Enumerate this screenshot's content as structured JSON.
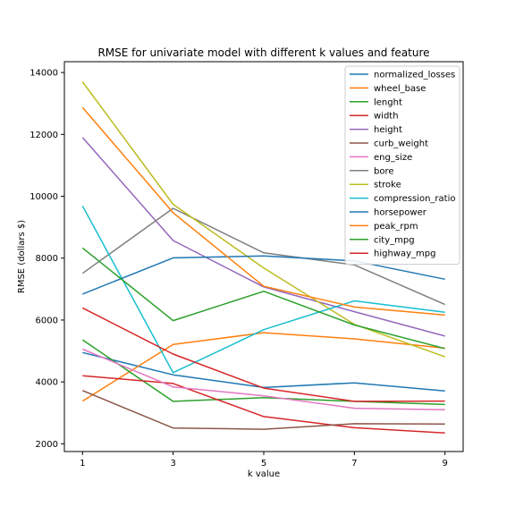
{
  "chart_data": {
    "type": "line",
    "title": "RMSE for univariate model with different k values and feature",
    "xlabel": "k value",
    "ylabel": "RMSE (dollars $)",
    "x": [
      1,
      3,
      5,
      7,
      9
    ],
    "xticks": [
      "1",
      "3",
      "5",
      "7",
      "9"
    ],
    "xlim": [
      0.6,
      9.4
    ],
    "yticks": [
      2000,
      4000,
      6000,
      8000,
      10000,
      12000,
      14000
    ],
    "ylim": [
      1750,
      14350
    ],
    "grid": false,
    "legend_position": "top-right",
    "series": [
      {
        "name": "normalized_losses",
        "color": "#1f77b4",
        "values": [
          4950,
          4230,
          3820,
          3970,
          3710
        ]
      },
      {
        "name": "wheel_base",
        "color": "#ff7f0e",
        "values": [
          3380,
          5210,
          5590,
          5390,
          5090
        ]
      },
      {
        "name": "lenght",
        "color": "#2ca02c",
        "values": [
          5360,
          3370,
          3490,
          3370,
          3270
        ]
      },
      {
        "name": "width",
        "color": "#d62728",
        "values": [
          4200,
          3950,
          2880,
          2520,
          2350
        ]
      },
      {
        "name": "height",
        "color": "#9467bd",
        "values": [
          11900,
          8570,
          7070,
          6270,
          5480
        ]
      },
      {
        "name": "curb_weight",
        "color": "#8c564b",
        "values": [
          3720,
          2510,
          2470,
          2650,
          2640
        ]
      },
      {
        "name": "eng_size",
        "color": "#e377c2",
        "values": [
          5060,
          3840,
          3550,
          3150,
          3100
        ]
      },
      {
        "name": "bore",
        "color": "#7f7f7f",
        "values": [
          7510,
          9610,
          8170,
          7780,
          6500
        ]
      },
      {
        "name": "stroke",
        "color": "#bcbd22",
        "values": [
          13700,
          9740,
          7680,
          5860,
          4810
        ]
      },
      {
        "name": "compression_ratio",
        "color": "#17becf",
        "values": [
          9690,
          4300,
          5690,
          6620,
          6250
        ]
      },
      {
        "name": "horsepower",
        "color": "#1f77b4",
        "values": [
          6840,
          8010,
          8070,
          7910,
          7320
        ]
      },
      {
        "name": "peak_rpm",
        "color": "#ff7f0e",
        "values": [
          12870,
          9470,
          7090,
          6420,
          6160
        ]
      },
      {
        "name": "city_mpg",
        "color": "#2ca02c",
        "values": [
          8330,
          5980,
          6930,
          5840,
          5080
        ]
      },
      {
        "name": "highway_mpg",
        "color": "#d62728",
        "values": [
          6390,
          4900,
          3800,
          3370,
          3380
        ]
      }
    ]
  }
}
